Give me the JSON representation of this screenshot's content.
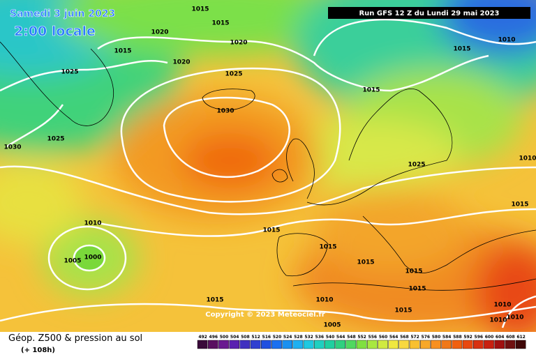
{
  "map": {
    "title": "Samedi 3 juin 2023",
    "subtitle": "2:00 locale",
    "run": "Run GFS 12 Z du Lundi 29 mai 2023",
    "isobar_labels": [
      "1015",
      "1015",
      "1020",
      "1015",
      "1020",
      "1020",
      "1025",
      "1025",
      "1015",
      "1015",
      "1010",
      "1030",
      "1030",
      "1025",
      "1025",
      "1010",
      "1015",
      "1010",
      "1015",
      "1005",
      "1000",
      "1015",
      "1015",
      "1015",
      "1015",
      "1010",
      "1015",
      "1015",
      "1010",
      "1010",
      "1010",
      "1005"
    ],
    "copyright": "Copyright © 2023 Meteociel.fr",
    "caption": "Géop. Z500 & pression au sol",
    "lead_time": "(+ 108h)",
    "legend": {
      "values": [
        492,
        496,
        500,
        504,
        508,
        512,
        516,
        520,
        524,
        528,
        532,
        536,
        540,
        544,
        548,
        552,
        556,
        560,
        564,
        568,
        572,
        576,
        580,
        584,
        588,
        592,
        596,
        600,
        604,
        608,
        612
      ]
    }
  }
}
